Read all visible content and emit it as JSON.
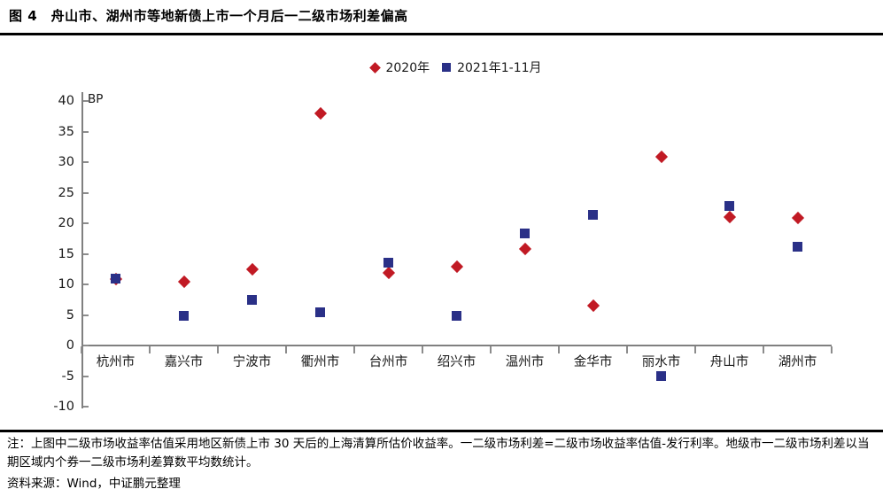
{
  "figure": {
    "title": "图 4　舟山市、湖州市等地新债上市一个月后一二级市场利差偏高"
  },
  "chart_data": {
    "type": "scatter",
    "title": "",
    "ylabel": "BP",
    "xlabel": "",
    "ylim": [
      -10,
      40
    ],
    "yticks": [
      40,
      35,
      30,
      25,
      20,
      15,
      10,
      5,
      0,
      -5,
      -10
    ],
    "grid": false,
    "legend_position": "top-center",
    "axis_color": "#808080",
    "categories": [
      "杭州市",
      "嘉兴市",
      "宁波市",
      "衢州市",
      "台州市",
      "绍兴市",
      "温州市",
      "金华市",
      "丽水市",
      "舟山市",
      "湖州市"
    ],
    "series": [
      {
        "name": "2020年",
        "marker": "diamond",
        "color": "#C11A24",
        "values": [
          10.8,
          10.4,
          12.4,
          37.9,
          11.9,
          12.9,
          15.8,
          6.5,
          30.8,
          21.0,
          20.9
        ]
      },
      {
        "name": "2021年1-11月",
        "marker": "square",
        "color": "#2A3087",
        "values": [
          10.9,
          4.9,
          7.5,
          5.4,
          13.5,
          4.9,
          18.3,
          21.4,
          -5.0,
          22.8,
          16.1
        ]
      }
    ]
  },
  "footer": {
    "note": "注：上图中二级市场收益率估值采用地区新债上市 30 天后的上海清算所估价收益率。一二级市场利差=二级市场收益率估值-发行利率。地级市一二级市场利差以当期区域内个券一二级市场利差算数平均数统计。",
    "source": "资料来源：Wind，中证鹏元整理"
  }
}
